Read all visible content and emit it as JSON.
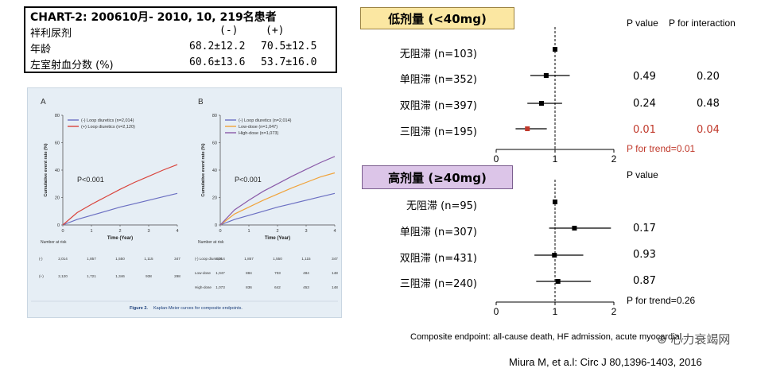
{
  "info_box": {
    "title": "CHART-2: 200610月- 2010, 10, 219名患者",
    "header_label": "袢利尿剂",
    "col_neg": "(-)",
    "col_pos": "(+)",
    "rows": [
      {
        "label": "年龄",
        "neg": "68.2±12.2",
        "pos": "70.5±12.5"
      },
      {
        "label": "左室射血分数 (%)",
        "neg": "60.6±13.6",
        "pos": "53.7±16.0"
      }
    ]
  },
  "figure": {
    "panel_a_letter": "A",
    "panel_b_letter": "B",
    "ylabel": "Cumulative event rate (%)",
    "xlabel": "Time (Year)",
    "y_ticks": [
      "0",
      "20",
      "40",
      "60",
      "80"
    ],
    "x_ticks": [
      "0",
      "1",
      "2",
      "3",
      "4"
    ],
    "pvalue_text": "P<0.001",
    "caption_label": "Figure 2.",
    "caption_text": "Kaplan-Meier curves for composite endpoints.",
    "number_at_risk_label": "Number at risk",
    "panel_a": {
      "legend": [
        "(-) Loop diuretics (n=2,014)",
        "(+) Loop diuretics (n=2,120)"
      ],
      "colors": [
        "#6b6fc2",
        "#d9443c"
      ],
      "series": [
        {
          "name": "(-) Loop diuretics",
          "x": [
            0,
            0.5,
            1,
            1.5,
            2,
            2.5,
            3,
            3.5,
            4
          ],
          "y": [
            0,
            4,
            7,
            10,
            13,
            15.5,
            18,
            20.5,
            23
          ]
        },
        {
          "name": "(+) Loop diuretics",
          "x": [
            0,
            0.5,
            1,
            1.5,
            2,
            2.5,
            3,
            3.5,
            4
          ],
          "y": [
            0,
            9,
            15,
            20.5,
            26,
            31,
            35.5,
            40,
            44
          ]
        }
      ],
      "risk_table": [
        {
          "group": "(-)",
          "values": [
            "2,014",
            "1,857",
            "1,550",
            "1,115",
            "347"
          ]
        },
        {
          "group": "(+)",
          "values": [
            "2,120",
            "1,721",
            "1,346",
            "938",
            "298"
          ]
        }
      ]
    },
    "panel_b": {
      "legend": [
        "(-) Loop diuretics (n=2,014)",
        "Low-dose (n=1,047)",
        "High-dose (n=1,073)"
      ],
      "colors": [
        "#6b6fc2",
        "#f0a33a",
        "#8a5aa8"
      ],
      "series": [
        {
          "name": "(-) Loop diuretics",
          "x": [
            0,
            0.5,
            1,
            1.5,
            2,
            2.5,
            3,
            3.5,
            4
          ],
          "y": [
            0,
            4,
            7,
            10,
            13,
            15.5,
            18,
            20.5,
            23
          ]
        },
        {
          "name": "Low-dose",
          "x": [
            0,
            0.5,
            1,
            1.5,
            2,
            2.5,
            3,
            3.5,
            4
          ],
          "y": [
            0,
            8,
            13,
            18,
            22.5,
            27,
            31,
            35,
            38
          ]
        },
        {
          "name": "High-dose",
          "x": [
            0,
            0.5,
            1,
            1.5,
            2,
            2.5,
            3,
            3.5,
            4
          ],
          "y": [
            0,
            11,
            18,
            24.5,
            30,
            35.5,
            40.5,
            45.5,
            50
          ]
        }
      ],
      "risk_table": [
        {
          "group": "(-) Loop diuretics",
          "values": [
            "2,014",
            "1,857",
            "1,550",
            "1,115",
            "347"
          ]
        },
        {
          "group": "Low-dose",
          "values": [
            "1,047",
            "884",
            "703",
            "484",
            "148"
          ]
        },
        {
          "group": "High-dose",
          "values": [
            "1,073",
            "836",
            "642",
            "453",
            "148"
          ]
        }
      ]
    }
  },
  "forest": {
    "low_dose_header": "低剂量 (<40mg)",
    "high_dose_header": "高剂量 (≥40mg)",
    "p_value_header": "P value",
    "p_interaction_header": "P for interaction",
    "axis_ticks": [
      "0",
      "1",
      "2"
    ],
    "low_trend": "P for trend=0.01",
    "high_trend": "P for trend=0.26",
    "low_rows": [
      {
        "label": "无阻滞 (n=103)",
        "hr": 1.0,
        "lo": 1.0,
        "hi": 1.0,
        "p": "",
        "pint": "",
        "highlight": false
      },
      {
        "label": "单阻滞 (n=352)",
        "hr": 0.85,
        "lo": 0.58,
        "hi": 1.25,
        "p": "0.49",
        "pint": "0.20",
        "highlight": false
      },
      {
        "label": "双阻滞 (n=397)",
        "hr": 0.77,
        "lo": 0.53,
        "hi": 1.12,
        "p": "0.24",
        "pint": "0.48",
        "highlight": false
      },
      {
        "label": "三阻滞 (n=195)",
        "hr": 0.53,
        "lo": 0.33,
        "hi": 0.86,
        "p": "0.01",
        "pint": "0.04",
        "highlight": true
      }
    ],
    "high_rows": [
      {
        "label": "无阻滞 (n=95)",
        "hr": 1.0,
        "lo": 1.0,
        "hi": 1.0,
        "p": "",
        "highlight": false
      },
      {
        "label": "单阻滞 (n=307)",
        "hr": 1.33,
        "lo": 0.9,
        "hi": 1.95,
        "p": "0.17",
        "highlight": false
      },
      {
        "label": "双阻滞 (n=431)",
        "hr": 0.99,
        "lo": 0.65,
        "hi": 1.48,
        "p": "0.93",
        "highlight": false
      },
      {
        "label": "三阻滞 (n=240)",
        "hr": 1.05,
        "lo": 0.68,
        "hi": 1.61,
        "p": "0.87",
        "highlight": false
      }
    ]
  },
  "chart_data": [
    {
      "type": "line",
      "title": "Panel A",
      "xlabel": "Time (Year)",
      "ylabel": "Cumulative event rate (%)",
      "xlim": [
        0,
        4
      ],
      "ylim": [
        0,
        80
      ],
      "series": [
        {
          "name": "(-) Loop diuretics (n=2,014)",
          "x": [
            0,
            1,
            2,
            3,
            4
          ],
          "y": [
            0,
            7,
            13,
            18,
            23
          ]
        },
        {
          "name": "(+) Loop diuretics (n=2,120)",
          "x": [
            0,
            1,
            2,
            3,
            4
          ],
          "y": [
            0,
            15,
            26,
            35.5,
            44
          ]
        }
      ]
    },
    {
      "type": "line",
      "title": "Panel B",
      "xlabel": "Time (Year)",
      "ylabel": "Cumulative event rate (%)",
      "xlim": [
        0,
        4
      ],
      "ylim": [
        0,
        80
      ],
      "series": [
        {
          "name": "(-) Loop diuretics (n=2,014)",
          "x": [
            0,
            1,
            2,
            3,
            4
          ],
          "y": [
            0,
            7,
            13,
            18,
            23
          ]
        },
        {
          "name": "Low-dose (n=1,047)",
          "x": [
            0,
            1,
            2,
            3,
            4
          ],
          "y": [
            0,
            13,
            22.5,
            31,
            38
          ]
        },
        {
          "name": "High-dose (n=1,073)",
          "x": [
            0,
            1,
            2,
            3,
            4
          ],
          "y": [
            0,
            18,
            30,
            40.5,
            50
          ]
        }
      ]
    },
    {
      "type": "scatter",
      "title": "低剂量 (<40mg) forest plot",
      "xlim": [
        0,
        2
      ],
      "categories": [
        "无阻滞 (n=103)",
        "单阻滞 (n=352)",
        "双阻滞 (n=397)",
        "三阻滞 (n=195)"
      ],
      "values": [
        1.0,
        0.85,
        0.77,
        0.53
      ],
      "ci_low": [
        1.0,
        0.58,
        0.53,
        0.33
      ],
      "ci_high": [
        1.0,
        1.25,
        1.12,
        0.86
      ]
    },
    {
      "type": "scatter",
      "title": "高剂量 (≥40mg) forest plot",
      "xlim": [
        0,
        2
      ],
      "categories": [
        "无阻滞 (n=95)",
        "单阻滞 (n=307)",
        "双阻滞 (n=431)",
        "三阻滞 (n=240)"
      ],
      "values": [
        1.0,
        1.33,
        0.99,
        1.05
      ],
      "ci_low": [
        1.0,
        0.9,
        0.65,
        0.68
      ],
      "ci_high": [
        1.0,
        1.95,
        1.48,
        1.61
      ]
    }
  ],
  "footnote": "Composite endpoint: all-cause death, HF admission, acute myocardial...",
  "citation": "Miura M, et a.l: Circ J 80,1396-1403, 2016",
  "watermark": "心力衰竭网",
  "colors": {
    "highlight_red": "#c0392b",
    "low_header_bg": "#fbe7a2",
    "high_header_bg": "#dcc5e8"
  }
}
